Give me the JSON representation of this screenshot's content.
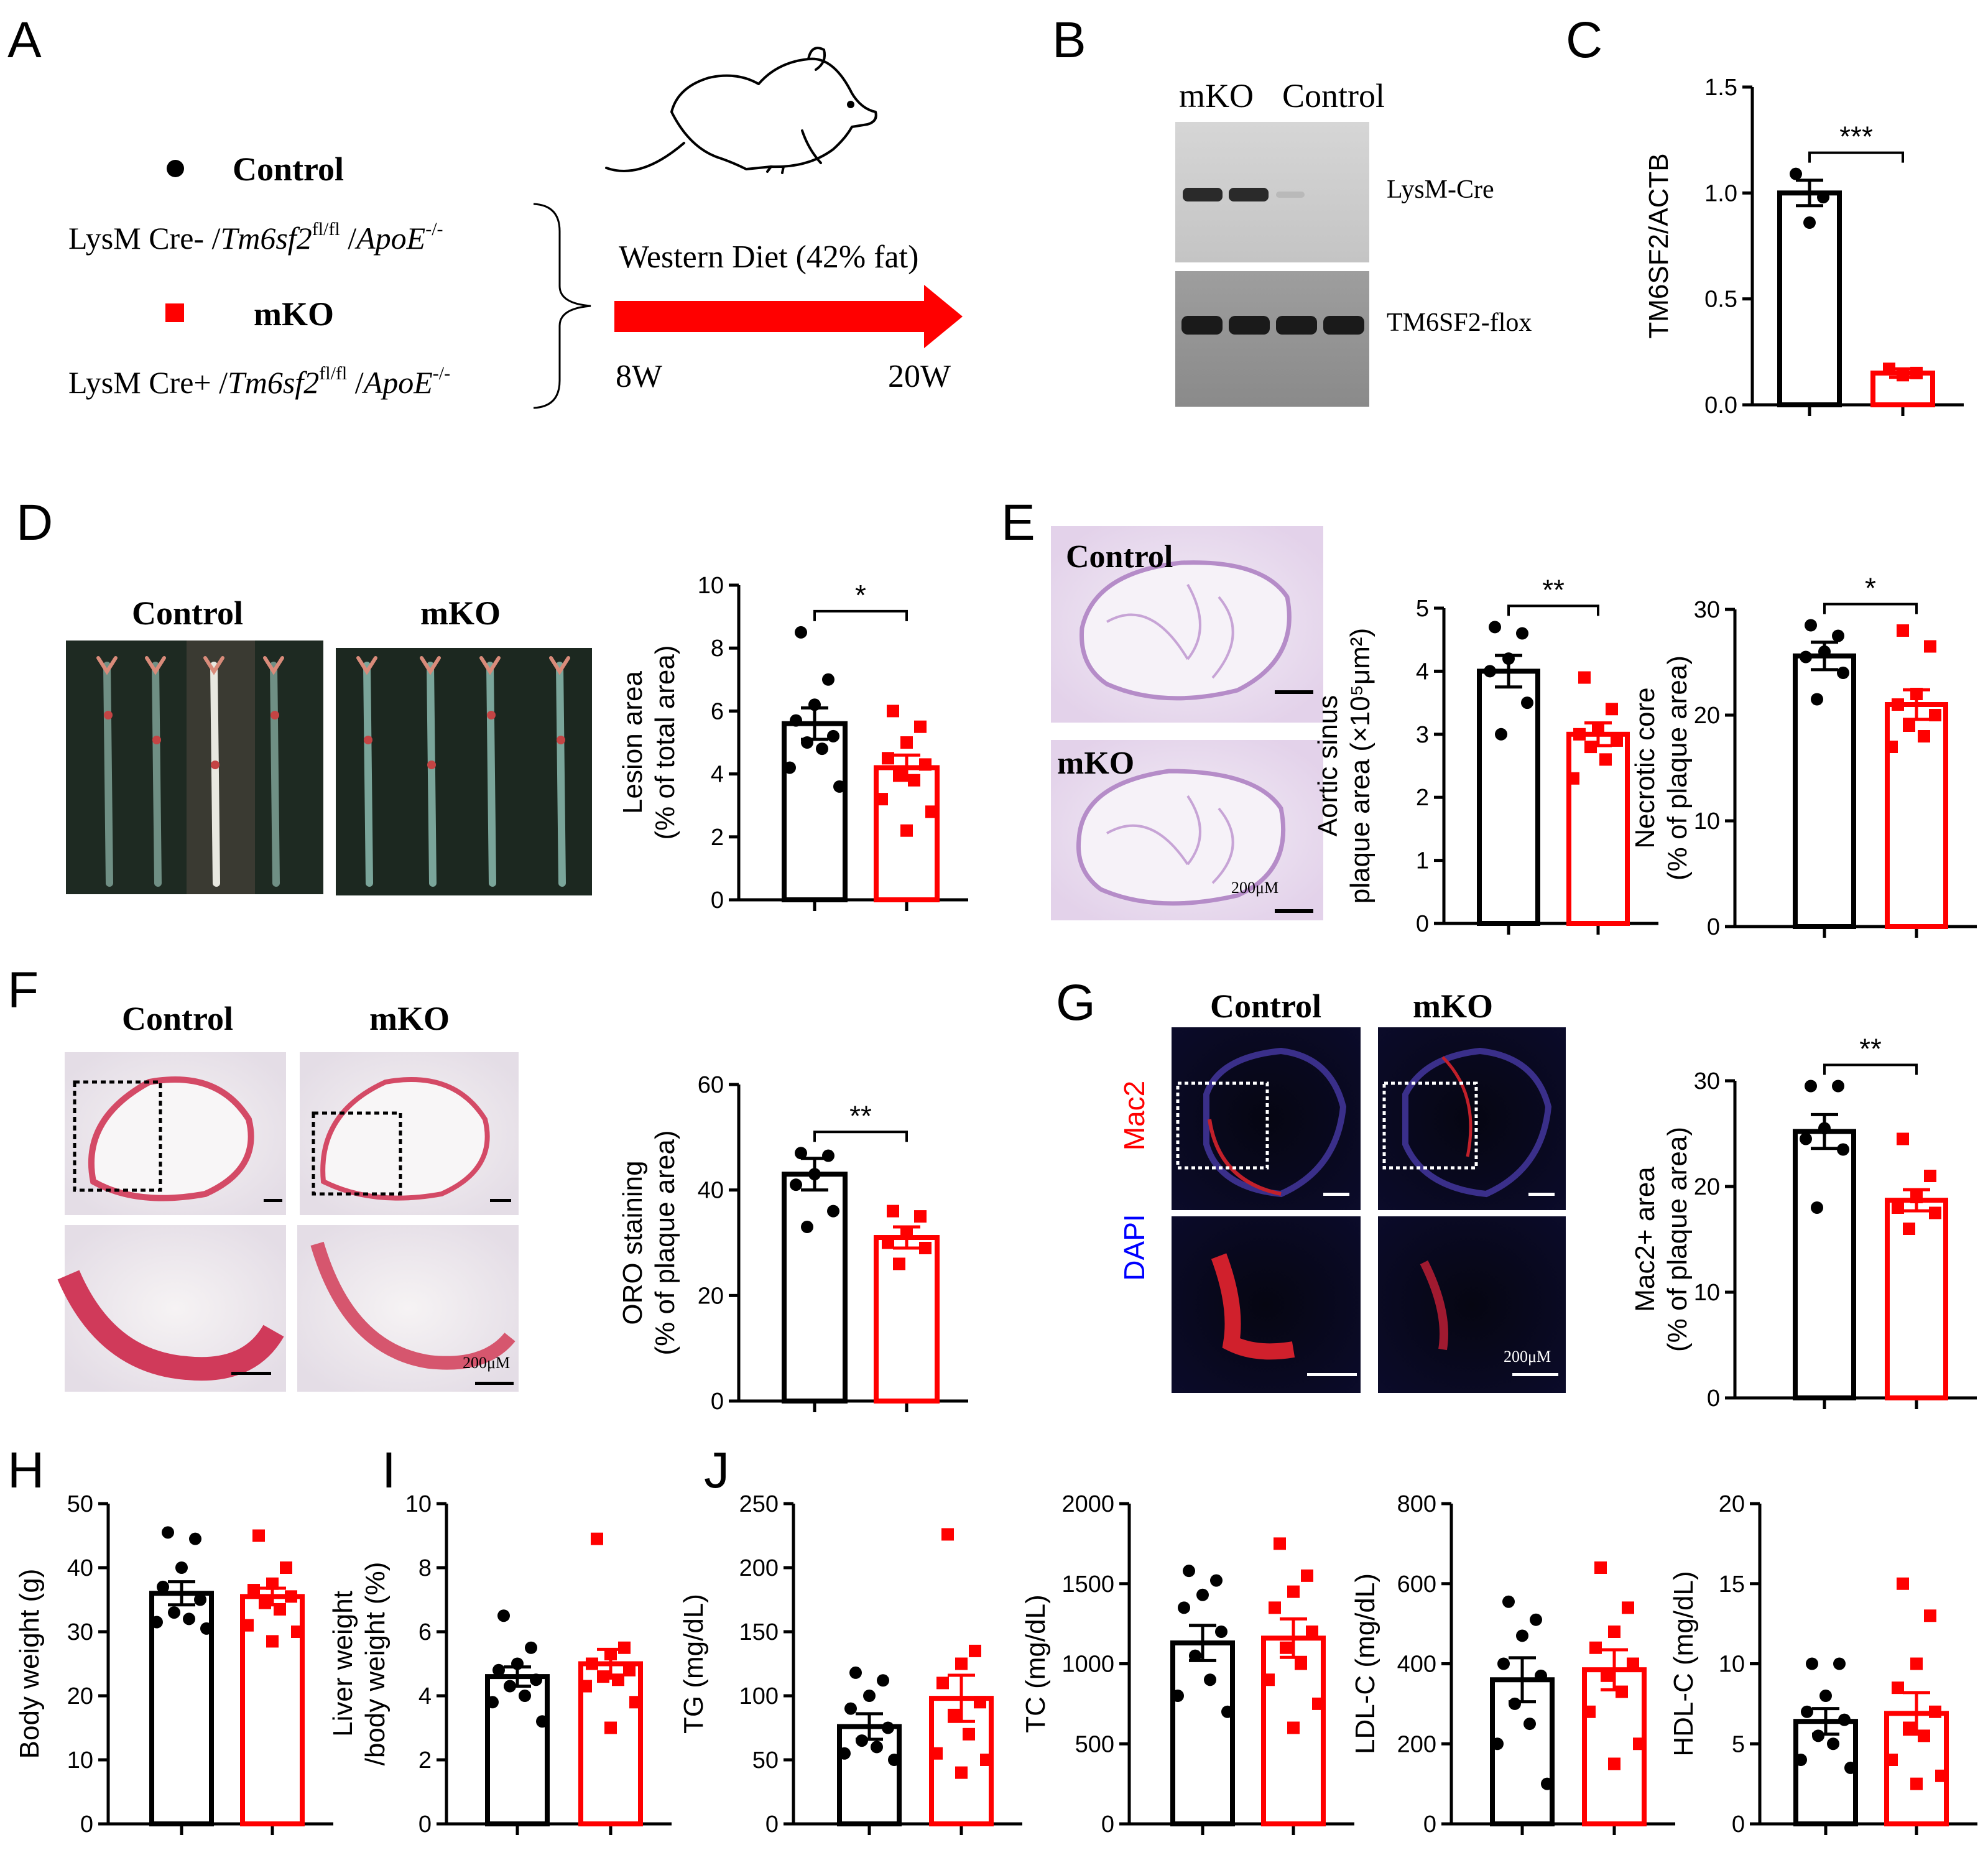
{
  "colors": {
    "control": "#000000",
    "mko": "#ff0000"
  },
  "panels": {
    "A": {
      "letter": "A",
      "legend_control": "Control",
      "genotype_control": [
        "LysM Cre- /",
        "Tm6sf2",
        "fl/fl",
        " /",
        "ApoE",
        "-/-"
      ],
      "legend_mko": "mKO",
      "genotype_mko": [
        "LysM Cre+ /",
        "Tm6sf2",
        "fl/fl",
        " /",
        "ApoE",
        "-/-"
      ],
      "diet": "Western Diet (42% fat)",
      "start": "8W",
      "end": "20W",
      "icon": "mouse-icon"
    },
    "B": {
      "letter": "B",
      "lane_mko": "mKO",
      "lane_control": "Control",
      "gel1_label": "LysM-Cre",
      "gel2_label": "TM6SF2-flox"
    },
    "D": {
      "letter": "D",
      "photo_control": "Control",
      "photo_mko": "mKO"
    },
    "E": {
      "letter": "E",
      "img_control": "Control",
      "img_mko": "mKO",
      "scale": "200μM"
    },
    "F": {
      "letter": "F",
      "img_control": "Control",
      "img_mko": "mKO",
      "scale": "200μM"
    },
    "G": {
      "letter": "G",
      "img_control": "Control",
      "img_mko": "mKO",
      "ch_red": "Mac2",
      "ch_blue": "DAPI",
      "scale": "200μM"
    },
    "H": {
      "letter": "H"
    },
    "I": {
      "letter": "I"
    },
    "J": {
      "letter": "J"
    }
  },
  "chart_data": [
    {
      "id": "C",
      "type": "bar",
      "categories": [
        "Control",
        "mKO"
      ],
      "ylabel": "TM6SF2/ACTB",
      "ylim": [
        0,
        1.5
      ],
      "yticks": [
        0.0,
        0.5,
        1.0,
        1.5
      ],
      "ytick_labels": [
        "0.0",
        "0.5",
        "1.0",
        "1.5"
      ],
      "series": [
        {
          "values": [
            1.0,
            0.15
          ],
          "sem": [
            0.06,
            0.02
          ]
        }
      ],
      "points": [
        [
          1.09,
          0.98,
          0.86
        ],
        [
          0.17,
          0.15,
          0.14
        ]
      ],
      "significance": "***"
    },
    {
      "id": "D",
      "type": "bar",
      "categories": [
        "Control",
        "mKO"
      ],
      "ylabel": [
        "Lesion area",
        "(% of total area)"
      ],
      "ylim": [
        0,
        10
      ],
      "yticks": [
        0,
        2,
        4,
        6,
        8,
        10
      ],
      "series": [
        {
          "values": [
            5.6,
            4.2
          ],
          "sem": [
            0.5,
            0.4
          ]
        }
      ],
      "points": [
        [
          8.5,
          7.0,
          6.2,
          5.7,
          5.2,
          5.0,
          4.8,
          4.2,
          3.6
        ],
        [
          6.0,
          5.5,
          5.0,
          4.5,
          4.3,
          4.0,
          3.8,
          3.2,
          2.8,
          2.2
        ]
      ],
      "significance": "*"
    },
    {
      "id": "E1",
      "type": "bar",
      "categories": [
        "Control",
        "mKO"
      ],
      "ylabel": [
        "Aortic sinus",
        "plaque area (×10⁵μm²)"
      ],
      "ylim": [
        0,
        5
      ],
      "yticks": [
        0,
        1,
        2,
        3,
        4,
        5
      ],
      "series": [
        {
          "values": [
            4.0,
            3.0
          ],
          "sem": [
            0.25,
            0.18
          ]
        }
      ],
      "points": [
        [
          4.7,
          4.6,
          4.2,
          4.0,
          3.5,
          3.0
        ],
        [
          3.9,
          3.4,
          3.1,
          3.0,
          2.9,
          2.8,
          2.6,
          2.3
        ]
      ],
      "significance": "**"
    },
    {
      "id": "E2",
      "type": "bar",
      "categories": [
        "Control",
        "mKO"
      ],
      "ylabel": [
        "Necrotic core",
        "(% of plaque area)"
      ],
      "ylim": [
        0,
        30
      ],
      "yticks": [
        0,
        10,
        20,
        30
      ],
      "series": [
        {
          "values": [
            25.6,
            21.0
          ],
          "sem": [
            1.3,
            1.4
          ]
        }
      ],
      "points": [
        [
          28.5,
          27.5,
          26.0,
          25.5,
          24.0,
          21.5
        ],
        [
          28.0,
          26.5,
          22.0,
          21.0,
          20.0,
          19.0,
          18.0,
          17.0
        ]
      ],
      "significance": "*"
    },
    {
      "id": "F",
      "type": "bar",
      "categories": [
        "Control",
        "mKO"
      ],
      "ylabel": [
        "ORO staining",
        "(% of plaque area)"
      ],
      "ylim": [
        0,
        60
      ],
      "yticks": [
        0,
        20,
        40,
        60
      ],
      "series": [
        {
          "values": [
            43.0,
            31.0
          ],
          "sem": [
            3.0,
            2.0
          ]
        }
      ],
      "points": [
        [
          47.0,
          46.5,
          43.0,
          41.0,
          36.0,
          33.0
        ],
        [
          36.0,
          35.0,
          32.0,
          30.0,
          29.0,
          26.0
        ]
      ],
      "significance": "**"
    },
    {
      "id": "G",
      "type": "bar",
      "categories": [
        "Control",
        "mKO"
      ],
      "ylabel": [
        "Mac2+ area",
        "(% of plaque area)"
      ],
      "ylim": [
        0,
        30
      ],
      "yticks": [
        0,
        10,
        20,
        30
      ],
      "series": [
        {
          "values": [
            25.2,
            18.7
          ],
          "sem": [
            1.6,
            1.0
          ]
        }
      ],
      "points": [
        [
          29.5,
          29.5,
          25.5,
          24.5,
          23.5,
          18.0
        ],
        [
          24.5,
          21.0,
          19.0,
          18.0,
          17.5,
          16.0
        ]
      ],
      "significance": "**"
    },
    {
      "id": "H",
      "type": "bar",
      "categories": [
        "Control",
        "mKO"
      ],
      "ylabel": [
        "Body weight (g)"
      ],
      "ylim": [
        0,
        50
      ],
      "yticks": [
        0,
        10,
        20,
        30,
        40,
        50
      ],
      "series": [
        {
          "values": [
            36.0,
            35.5
          ],
          "sem": [
            1.8,
            1.3
          ]
        }
      ],
      "points": [
        [
          45.5,
          44.5,
          40.0,
          37.0,
          35.0,
          33.0,
          32.0,
          31.5,
          30.5
        ],
        [
          45.0,
          40.0,
          37.5,
          36.5,
          35.5,
          34.5,
          33.5,
          31.0,
          30.0,
          28.5
        ]
      ],
      "significance": ""
    },
    {
      "id": "I",
      "type": "bar",
      "categories": [
        "Control",
        "mKO"
      ],
      "ylabel": [
        "Liver weight",
        "/body weight (%)"
      ],
      "ylim": [
        0,
        10
      ],
      "yticks": [
        0,
        2,
        4,
        6,
        8,
        10
      ],
      "series": [
        {
          "values": [
            4.6,
            5.0
          ],
          "sem": [
            0.3,
            0.45
          ]
        }
      ],
      "points": [
        [
          6.5,
          5.5,
          5.0,
          4.8,
          4.5,
          4.3,
          4.0,
          3.8,
          3.2
        ],
        [
          8.9,
          5.5,
          5.3,
          5.0,
          4.8,
          4.6,
          4.5,
          4.3,
          3.8,
          3.0
        ]
      ],
      "significance": ""
    },
    {
      "id": "J1",
      "type": "bar",
      "categories": [
        "Control",
        "mKO"
      ],
      "ylabel": [
        "TG (mg/dL)"
      ],
      "ylim": [
        0,
        250
      ],
      "yticks": [
        0,
        50,
        100,
        150,
        200,
        250
      ],
      "series": [
        {
          "values": [
            76.0,
            98.0
          ],
          "sem": [
            10.0,
            18.0
          ]
        }
      ],
      "points": [
        [
          118,
          112,
          100,
          90,
          75,
          65,
          60,
          55,
          50
        ],
        [
          226,
          135,
          125,
          110,
          95,
          85,
          70,
          55,
          50,
          40
        ]
      ],
      "significance": ""
    },
    {
      "id": "J2",
      "type": "bar",
      "categories": [
        "Control",
        "mKO"
      ],
      "ylabel": [
        "TC (mg/dL)"
      ],
      "ylim": [
        0,
        2000
      ],
      "yticks": [
        0,
        500,
        1000,
        1500,
        2000
      ],
      "series": [
        {
          "values": [
            1130,
            1160
          ],
          "sem": [
            110,
            120
          ]
        }
      ],
      "points": [
        [
          1580,
          1520,
          1430,
          1350,
          1200,
          1050,
          900,
          800,
          700
        ],
        [
          1750,
          1550,
          1450,
          1350,
          1200,
          1100,
          1000,
          900,
          750,
          600
        ]
      ],
      "significance": ""
    },
    {
      "id": "J3",
      "type": "bar",
      "categories": [
        "Control",
        "mKO"
      ],
      "ylabel": [
        "LDL-C (mg/dL)"
      ],
      "ylim": [
        0,
        800
      ],
      "yticks": [
        0,
        200,
        400,
        600,
        800
      ],
      "series": [
        {
          "values": [
            360,
            385
          ],
          "sem": [
            55,
            50
          ]
        }
      ],
      "points": [
        [
          555,
          510,
          470,
          400,
          370,
          300,
          250,
          200,
          100
        ],
        [
          640,
          540,
          480,
          440,
          400,
          370,
          330,
          280,
          200,
          150
        ]
      ],
      "significance": ""
    },
    {
      "id": "J4",
      "type": "bar",
      "categories": [
        "Control",
        "mKO"
      ],
      "ylabel": [
        "HDL-C (mg/dL)"
      ],
      "ylim": [
        0,
        20
      ],
      "yticks": [
        0,
        5,
        10,
        15,
        20
      ],
      "series": [
        {
          "values": [
            6.4,
            6.9
          ],
          "sem": [
            0.8,
            1.3
          ]
        }
      ],
      "points": [
        [
          10.0,
          10.0,
          8.0,
          7.0,
          6.5,
          5.5,
          5.0,
          4.0,
          3.5
        ],
        [
          15.0,
          13.0,
          10.0,
          8.5,
          7.0,
          6.0,
          5.5,
          4.0,
          3.0,
          2.5
        ]
      ],
      "significance": ""
    }
  ]
}
